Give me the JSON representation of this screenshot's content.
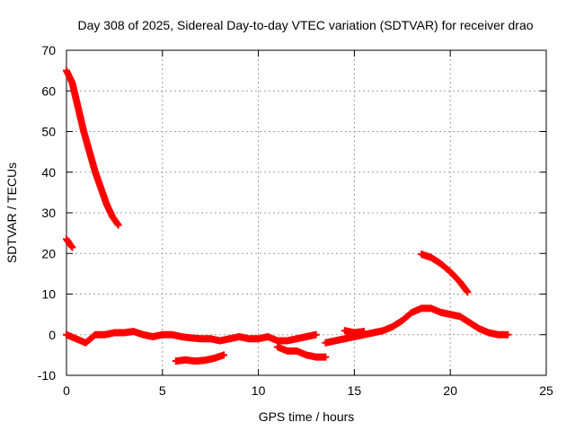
{
  "chart_data": {
    "type": "scatter",
    "title": "Day 308 of 2025, Sidereal Day-to-day VTEC variation (SDTVAR) for receiver drao",
    "xlabel": "GPS time / hours",
    "ylabel": "SDTVAR / TECUs",
    "xlim": [
      0,
      25
    ],
    "ylim": [
      -10,
      70
    ],
    "xticks": [
      0,
      5,
      10,
      15,
      20,
      25
    ],
    "yticks": [
      -10,
      0,
      10,
      20,
      30,
      40,
      50,
      60,
      70
    ],
    "grid": true,
    "marker": "plus",
    "color": "#ff0000",
    "series": [
      {
        "name": "track-1",
        "x": [
          0.0,
          0.3,
          0.6,
          0.9,
          1.2,
          1.5,
          1.8,
          2.1,
          2.4,
          2.7
        ],
        "y": [
          65,
          62,
          56,
          50,
          45,
          40,
          36,
          32,
          29,
          27
        ]
      },
      {
        "name": "track-2",
        "x": [
          0.0,
          0.15,
          0.3
        ],
        "y": [
          23.5,
          22.5,
          21.5
        ]
      },
      {
        "name": "track-3",
        "x": [
          0.0,
          0.5,
          1.0,
          1.5,
          2.0,
          2.5,
          3.0,
          3.5,
          4.0,
          4.5,
          5.0,
          5.5,
          6.0,
          6.5,
          7.0,
          7.5,
          8.0,
          8.5,
          9.0,
          9.5,
          10.0,
          10.5,
          11.0,
          11.5,
          12.0,
          12.5,
          13.0
        ],
        "y": [
          0,
          -1,
          -2,
          0,
          0,
          0.5,
          0.5,
          0.8,
          0,
          -0.5,
          0,
          0,
          -0.5,
          -0.8,
          -1,
          -1,
          -1.5,
          -1,
          -0.5,
          -1,
          -1,
          -0.5,
          -1.5,
          -1.5,
          -1,
          -0.5,
          0
        ]
      },
      {
        "name": "track-4",
        "x": [
          11.0,
          11.5,
          12.0,
          12.5,
          13.0,
          13.5
        ],
        "y": [
          -3,
          -4,
          -4,
          -5,
          -5.5,
          -5.5
        ]
      },
      {
        "name": "track-5",
        "x": [
          5.7,
          6.2,
          6.7,
          7.2,
          7.7,
          8.2
        ],
        "y": [
          -6.5,
          -6.2,
          -6.5,
          -6.3,
          -5.8,
          -5.0
        ]
      },
      {
        "name": "track-6",
        "x": [
          13.5,
          14.0,
          14.5,
          15.0,
          15.5,
          16.0,
          16.5,
          17.0,
          17.5,
          18.0,
          18.5,
          19.0,
          19.5,
          20.0,
          20.5,
          21.0,
          21.5,
          22.0,
          22.5,
          23.0
        ],
        "y": [
          -2,
          -1.5,
          -1,
          -0.5,
          0,
          0.5,
          1,
          2,
          3.5,
          5.5,
          6.5,
          6.5,
          5.5,
          5,
          4.5,
          3,
          1.5,
          0.5,
          0,
          0
        ]
      },
      {
        "name": "track-7",
        "x": [
          14.5,
          15.0,
          15.5
        ],
        "y": [
          1,
          0.5,
          0.8
        ]
      },
      {
        "name": "track-8",
        "x": [
          18.5,
          19.0,
          19.5,
          20.0,
          20.5,
          20.9
        ],
        "y": [
          19.8,
          19,
          17.5,
          15.5,
          13,
          10.5
        ]
      }
    ]
  }
}
